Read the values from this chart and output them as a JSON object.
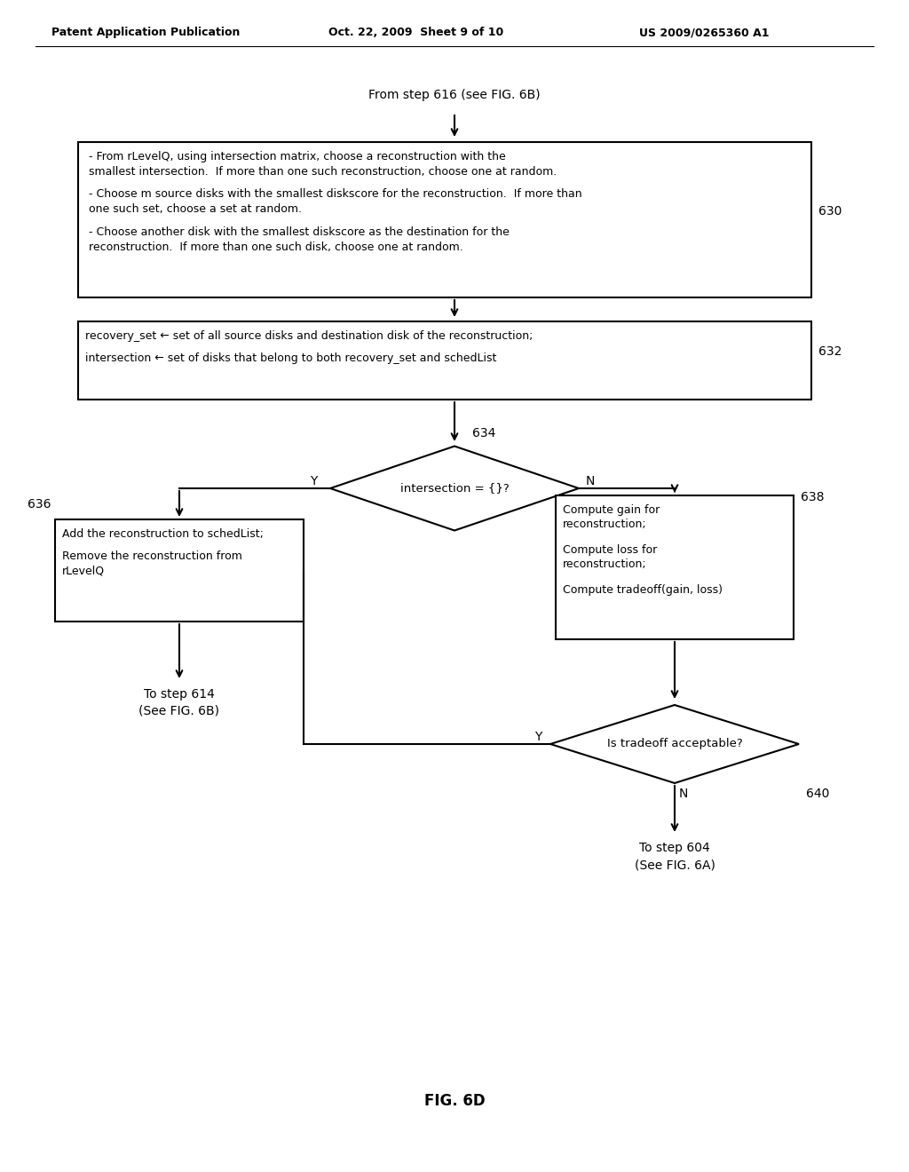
{
  "title_left": "Patent Application Publication",
  "title_mid": "Oct. 22, 2009  Sheet 9 of 10",
  "title_right": "US 2009/0265360 A1",
  "fig_label": "FIG. 6D",
  "background": "#ffffff",
  "start_text": "From step 616 (see FIG. 6B)",
  "box630_line1": "- From rLevelQ, using intersection matrix, choose a reconstruction with the",
  "box630_line2": "smallest intersection.  If more than one such reconstruction, choose one at random.",
  "box630_line3": "- Choose m source disks with the smallest diskscore for the reconstruction.  If more than",
  "box630_line4": "one such set, choose a set at random.",
  "box630_line5": "- Choose another disk with the smallest diskscore as the destination for the",
  "box630_line6": "reconstruction.  If more than one such disk, choose one at random.",
  "box630_label": "630",
  "box632_line1": "recovery_set ← set of all source disks and destination disk of the reconstruction;",
  "box632_line2": "intersection ← set of disks that belong to both recovery_set and schedList",
  "box632_label": "632",
  "diamond634_text": "intersection = {}?",
  "diamond634_label": "634",
  "box636_line1": "Add the reconstruction to schedList;",
  "box636_line2": "Remove the reconstruction from",
  "box636_line3": "rLevelQ",
  "box636_label": "636",
  "box638_line1": "Compute gain for",
  "box638_line2": "reconstruction;",
  "box638_line3": "Compute loss for",
  "box638_line4": "reconstruction;",
  "box638_line5": "Compute tradeoff(gain, loss)",
  "box638_label": "638",
  "diamond640_text": "Is tradeoff acceptable?",
  "diamond640_label": "640",
  "end636_line1": "To step 614",
  "end636_line2": "(See FIG. 6B)",
  "end640_line1": "To step 604",
  "end640_line2": "(See FIG. 6A)"
}
